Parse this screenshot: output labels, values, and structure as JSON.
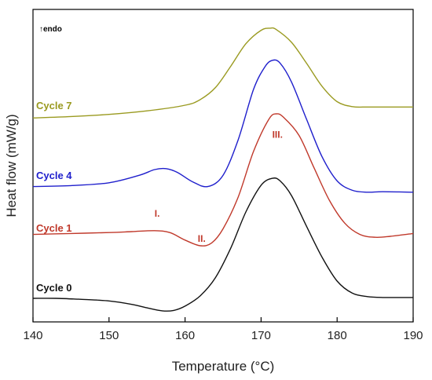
{
  "chart_data": {
    "type": "line",
    "title": "",
    "xlabel": "Temperature (°C)",
    "ylabel": "Heat flow (mW/g)",
    "xlim": [
      140,
      190
    ],
    "x_ticks": [
      140,
      150,
      160,
      170,
      180,
      190
    ],
    "y_ticks_shown": false,
    "grid": false,
    "legend": "inline labels on curves",
    "endo_label": "↑endo",
    "series": [
      {
        "name": "Cycle 7",
        "color": "#9a9a20",
        "x": [
          140,
          145,
          150,
          155,
          160,
          162,
          164,
          166,
          168,
          170,
          171.2,
          172,
          174,
          176,
          178,
          180,
          182,
          184,
          186,
          190
        ],
        "y": [
          0.2,
          0.4,
          0.7,
          1.2,
          2.0,
          2.8,
          4.5,
          7.5,
          10.7,
          12.6,
          12.9,
          12.7,
          10.9,
          7.9,
          4.7,
          2.5,
          1.8,
          1.75,
          1.75,
          1.75
        ]
      },
      {
        "name": "Cycle 4",
        "color": "#1f1fcc",
        "x": [
          140,
          145,
          150,
          154,
          156,
          157.5,
          159,
          161,
          163,
          165,
          167,
          169,
          170.5,
          171.5,
          172.5,
          174,
          176,
          178,
          180,
          182,
          184,
          186,
          190
        ],
        "y": [
          0.2,
          0.3,
          0.6,
          1.4,
          2.0,
          2.1,
          1.7,
          0.7,
          0.2,
          1.4,
          5.2,
          10.5,
          12.9,
          13.6,
          13.3,
          11.3,
          7.3,
          3.4,
          0.8,
          -0.2,
          -0.4,
          -0.35,
          -0.4
        ]
      },
      {
        "name": "Cycle 1",
        "color": "#c0392b",
        "x": [
          140,
          145,
          150,
          153,
          156,
          158,
          160,
          162,
          163.5,
          165,
          167,
          169,
          171,
          172,
          173,
          175,
          177,
          179,
          181,
          183,
          185,
          187,
          190
        ],
        "y": [
          0.2,
          0.3,
          0.4,
          0.5,
          0.6,
          0.4,
          -0.4,
          -1.0,
          -0.7,
          0.8,
          4.2,
          9.0,
          12.4,
          13.0,
          12.6,
          10.7,
          7.2,
          3.8,
          1.4,
          0.2,
          -0.1,
          0.0,
          0.3
        ]
      },
      {
        "name": "Cycle 0",
        "color": "#111111",
        "x": [
          140,
          143,
          146,
          150,
          153,
          155,
          157,
          158.5,
          160,
          162,
          164,
          166,
          168,
          170,
          171.5,
          172.5,
          174,
          176,
          178,
          180,
          182,
          184,
          186,
          190
        ],
        "y": [
          0.0,
          0.0,
          -0.1,
          -0.3,
          -0.7,
          -1.1,
          -1.45,
          -1.4,
          -0.9,
          0.3,
          2.4,
          5.8,
          10.0,
          13.1,
          13.9,
          13.6,
          11.9,
          8.3,
          4.8,
          2.0,
          0.6,
          0.2,
          0.1,
          0.1
        ]
      }
    ],
    "annotations": [
      {
        "text": "I.",
        "x": 156.3,
        "series": "Cycle 1"
      },
      {
        "text": "II.",
        "x": 162.5,
        "series": "Cycle 1"
      },
      {
        "text": "III.",
        "x": 172.5,
        "series": "Cycle 1"
      }
    ]
  }
}
